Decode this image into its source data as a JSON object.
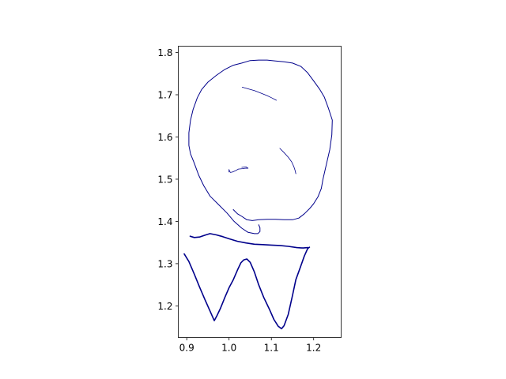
{
  "chart_data": {
    "type": "line",
    "title": "",
    "xlabel": "",
    "ylabel": "",
    "xlim": [
      0.88,
      1.265
    ],
    "ylim": [
      1.815,
      1.125
    ],
    "y_inverted": true,
    "grid": false,
    "legend": "none",
    "color": "#00008b",
    "x_ticks": [
      {
        "value": 0.9,
        "label": "0.9"
      },
      {
        "value": 1.0,
        "label": "1.0"
      },
      {
        "value": 1.1,
        "label": "1.1"
      },
      {
        "value": 1.2,
        "label": "1.2"
      }
    ],
    "y_ticks": [
      {
        "value": 1.2,
        "label": "1.2"
      },
      {
        "value": 1.3,
        "label": "1.3"
      },
      {
        "value": 1.4,
        "label": "1.4"
      },
      {
        "value": 1.5,
        "label": "1.5"
      },
      {
        "value": 1.6,
        "label": "1.6"
      },
      {
        "value": 1.7,
        "label": "1.7"
      },
      {
        "value": 1.8,
        "label": "1.8"
      }
    ],
    "series": [
      {
        "id": "m-shape",
        "width": 1.6,
        "points": [
          [
            0.894,
            1.323
          ],
          [
            0.905,
            1.305
          ],
          [
            0.918,
            1.275
          ],
          [
            0.93,
            1.245
          ],
          [
            0.943,
            1.215
          ],
          [
            0.955,
            1.188
          ],
          [
            0.962,
            1.172
          ],
          [
            0.965,
            1.165
          ],
          [
            0.972,
            1.178
          ],
          [
            0.98,
            1.195
          ],
          [
            0.99,
            1.22
          ],
          [
            1.0,
            1.243
          ],
          [
            1.01,
            1.262
          ],
          [
            1.02,
            1.285
          ],
          [
            1.028,
            1.302
          ],
          [
            1.035,
            1.309
          ],
          [
            1.042,
            1.311
          ],
          [
            1.05,
            1.303
          ],
          [
            1.06,
            1.28
          ],
          [
            1.07,
            1.25
          ],
          [
            1.082,
            1.22
          ],
          [
            1.095,
            1.193
          ],
          [
            1.106,
            1.168
          ],
          [
            1.116,
            1.152
          ],
          [
            1.124,
            1.146
          ],
          [
            1.13,
            1.153
          ],
          [
            1.14,
            1.18
          ],
          [
            1.15,
            1.225
          ],
          [
            1.158,
            1.262
          ],
          [
            1.168,
            1.29
          ],
          [
            1.178,
            1.318
          ],
          [
            1.186,
            1.336
          ],
          [
            1.19,
            1.339
          ]
        ]
      },
      {
        "id": "horizontal-band",
        "width": 1.6,
        "points": [
          [
            0.908,
            1.365
          ],
          [
            0.918,
            1.362
          ],
          [
            0.93,
            1.363
          ],
          [
            0.945,
            1.368
          ],
          [
            0.955,
            1.371
          ],
          [
            0.97,
            1.368
          ],
          [
            0.985,
            1.364
          ],
          [
            1.0,
            1.359
          ],
          [
            1.02,
            1.353
          ],
          [
            1.04,
            1.349
          ],
          [
            1.06,
            1.346
          ],
          [
            1.08,
            1.345
          ],
          [
            1.1,
            1.344
          ],
          [
            1.12,
            1.343
          ],
          [
            1.14,
            1.341
          ],
          [
            1.16,
            1.338
          ],
          [
            1.175,
            1.337
          ],
          [
            1.186,
            1.338
          ]
        ]
      },
      {
        "id": "circle-outline",
        "width": 1.0,
        "points": [
          [
            1.01,
            1.428
          ],
          [
            1.02,
            1.418
          ],
          [
            1.03,
            1.412
          ],
          [
            1.042,
            1.404
          ],
          [
            1.055,
            1.402
          ],
          [
            1.07,
            1.404
          ],
          [
            1.09,
            1.405
          ],
          [
            1.11,
            1.405
          ],
          [
            1.13,
            1.404
          ],
          [
            1.15,
            1.404
          ],
          [
            1.165,
            1.408
          ],
          [
            1.178,
            1.418
          ],
          [
            1.19,
            1.43
          ],
          [
            1.2,
            1.442
          ],
          [
            1.21,
            1.458
          ],
          [
            1.218,
            1.478
          ],
          [
            1.222,
            1.5
          ],
          [
            1.23,
            1.535
          ],
          [
            1.238,
            1.57
          ],
          [
            1.243,
            1.605
          ],
          [
            1.244,
            1.64
          ],
          [
            1.235,
            1.668
          ],
          [
            1.225,
            1.695
          ],
          [
            1.215,
            1.712
          ],
          [
            1.2,
            1.733
          ],
          [
            1.185,
            1.753
          ],
          [
            1.17,
            1.767
          ],
          [
            1.15,
            1.775
          ],
          [
            1.13,
            1.778
          ],
          [
            1.11,
            1.78
          ],
          [
            1.09,
            1.782
          ],
          [
            1.07,
            1.782
          ],
          [
            1.05,
            1.781
          ],
          [
            1.03,
            1.775
          ],
          [
            1.01,
            1.77
          ],
          [
            0.99,
            1.76
          ],
          [
            0.97,
            1.746
          ],
          [
            0.95,
            1.73
          ],
          [
            0.935,
            1.712
          ],
          [
            0.925,
            1.693
          ],
          [
            0.915,
            1.665
          ],
          [
            0.909,
            1.64
          ],
          [
            0.905,
            1.61
          ],
          [
            0.905,
            1.58
          ],
          [
            0.909,
            1.56
          ],
          [
            0.917,
            1.54
          ],
          [
            0.928,
            1.51
          ],
          [
            0.94,
            1.485
          ],
          [
            0.955,
            1.46
          ],
          [
            0.975,
            1.44
          ],
          [
            0.995,
            1.42
          ],
          [
            1.012,
            1.4
          ],
          [
            1.03,
            1.384
          ],
          [
            1.045,
            1.374
          ],
          [
            1.06,
            1.371
          ],
          [
            1.068,
            1.371
          ],
          [
            1.073,
            1.376
          ],
          [
            1.073,
            1.385
          ],
          [
            1.07,
            1.392
          ]
        ]
      },
      {
        "id": "small-mark",
        "width": 0.8,
        "points": [
          [
            1.0,
            1.522
          ],
          [
            1.003,
            1.516
          ],
          [
            1.008,
            1.517
          ],
          [
            1.015,
            1.52
          ],
          [
            1.022,
            1.524
          ],
          [
            1.032,
            1.525
          ],
          [
            1.038,
            1.526
          ],
          [
            1.045,
            1.526
          ],
          [
            1.04,
            1.529
          ],
          [
            1.03,
            1.528
          ]
        ]
      },
      {
        "id": "right-stroke",
        "width": 0.8,
        "points": [
          [
            1.12,
            1.573
          ],
          [
            1.13,
            1.563
          ],
          [
            1.14,
            1.552
          ],
          [
            1.148,
            1.541
          ],
          [
            1.153,
            1.53
          ],
          [
            1.156,
            1.521
          ],
          [
            1.158,
            1.513
          ]
        ]
      },
      {
        "id": "bottom-stroke",
        "width": 0.8,
        "points": [
          [
            1.031,
            1.718
          ],
          [
            1.045,
            1.714
          ],
          [
            1.06,
            1.71
          ],
          [
            1.075,
            1.704
          ],
          [
            1.09,
            1.698
          ],
          [
            1.1,
            1.693
          ],
          [
            1.112,
            1.687
          ]
        ]
      },
      {
        "id": "left-dot",
        "width": 0.8,
        "points": [
          [
            1.0,
            1.517
          ],
          [
            1.0,
            1.523
          ]
        ]
      }
    ]
  }
}
